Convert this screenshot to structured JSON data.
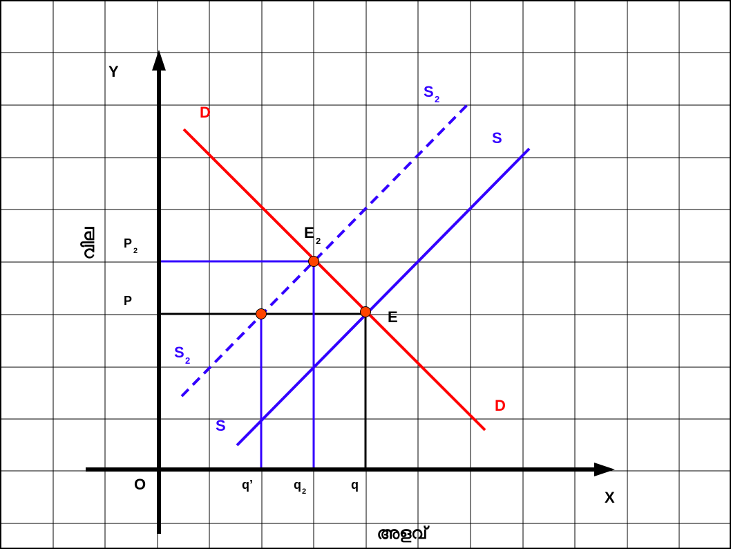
{
  "axes": {
    "y_letter": "Y",
    "x_letter": "X",
    "origin": "O",
    "y_title": "വില",
    "x_title": "അളവ്"
  },
  "curves": {
    "demand_top": "D",
    "demand_bottom": "D",
    "supply_top": "S",
    "supply_bottom": "S",
    "supply2_top": "S",
    "supply2_top_sub": "2",
    "supply2_bottom": "S",
    "supply2_bottom_sub": "2"
  },
  "equilibria": {
    "e": "E",
    "e2": "E",
    "e2_sub": "2"
  },
  "prices": {
    "p": "P",
    "p2": "P",
    "p2_sub": "2"
  },
  "quantities": {
    "q_prime": "q’",
    "q2": "q",
    "q2_sub": "2",
    "q": "q"
  },
  "colors": {
    "demand": "#ff0000",
    "supply": "#3300ff",
    "axis": "#000000",
    "point_fill": "#ff4400"
  }
}
